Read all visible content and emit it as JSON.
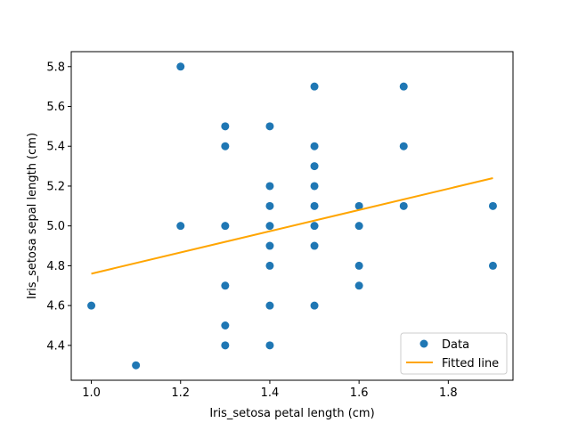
{
  "colors": {
    "data": "#1f77b4",
    "fit": "#ffa500",
    "axis": "#000000",
    "legend_border": "#cccccc"
  },
  "chart_data": {
    "type": "scatter",
    "title": "",
    "xlabel": "Iris_setosa petal length (cm)",
    "ylabel": "Iris_setosa sepal length (cm)",
    "xlim": [
      0.955,
      1.945
    ],
    "ylim": [
      4.225,
      5.875
    ],
    "x_ticks": [
      1.0,
      1.2,
      1.4,
      1.6,
      1.8
    ],
    "x_tick_labels": [
      "1.0",
      "1.2",
      "1.4",
      "1.6",
      "1.8"
    ],
    "y_ticks": [
      4.4,
      4.6,
      4.8,
      5.0,
      5.2,
      5.4,
      5.6,
      5.8
    ],
    "y_tick_labels": [
      "4.4",
      "4.6",
      "4.8",
      "5.0",
      "5.2",
      "5.4",
      "5.6",
      "5.8"
    ],
    "grid": false,
    "legend_position": "lower right",
    "series": [
      {
        "name": "Data",
        "kind": "scatter",
        "points": [
          [
            1.2,
            5.8
          ],
          [
            1.5,
            5.7
          ],
          [
            1.7,
            5.7
          ],
          [
            1.3,
            5.5
          ],
          [
            1.4,
            5.5
          ],
          [
            1.3,
            5.4
          ],
          [
            1.5,
            5.4
          ],
          [
            1.7,
            5.4
          ],
          [
            1.5,
            5.3
          ],
          [
            1.4,
            5.2
          ],
          [
            1.5,
            5.2
          ],
          [
            1.4,
            5.1
          ],
          [
            1.5,
            5.1
          ],
          [
            1.6,
            5.1
          ],
          [
            1.7,
            5.1
          ],
          [
            1.9,
            5.1
          ],
          [
            1.2,
            5.0
          ],
          [
            1.3,
            5.0
          ],
          [
            1.4,
            5.0
          ],
          [
            1.5,
            5.0
          ],
          [
            1.6,
            5.0
          ],
          [
            1.4,
            4.9
          ],
          [
            1.5,
            4.9
          ],
          [
            1.4,
            4.8
          ],
          [
            1.6,
            4.8
          ],
          [
            1.9,
            4.8
          ],
          [
            1.3,
            4.7
          ],
          [
            1.6,
            4.7
          ],
          [
            1.0,
            4.6
          ],
          [
            1.4,
            4.6
          ],
          [
            1.5,
            4.6
          ],
          [
            1.3,
            4.5
          ],
          [
            1.3,
            4.4
          ],
          [
            1.4,
            4.4
          ],
          [
            1.1,
            4.3
          ]
        ]
      },
      {
        "name": "Fitted line",
        "kind": "line",
        "points": [
          [
            1.0,
            4.76
          ],
          [
            1.9,
            5.24
          ]
        ]
      }
    ]
  }
}
